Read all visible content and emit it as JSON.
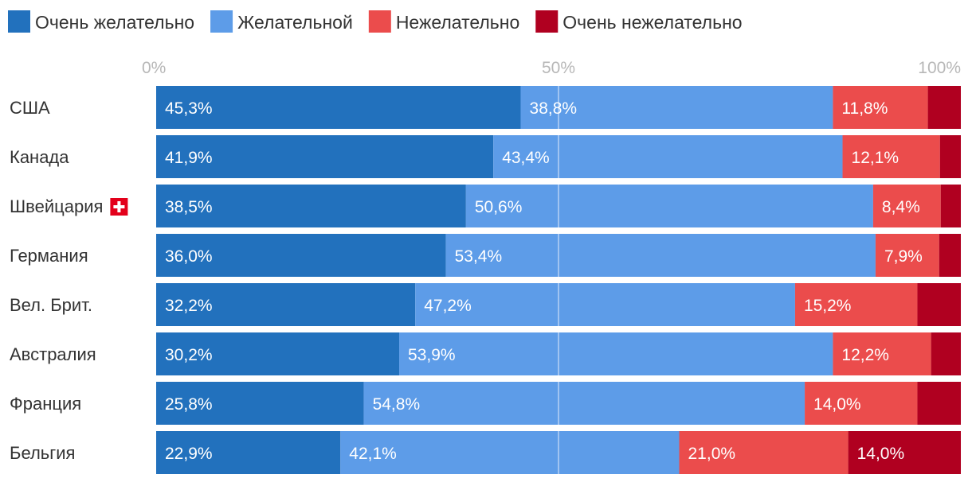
{
  "chart_data": {
    "type": "bar",
    "orientation": "horizontal",
    "stacked": true,
    "legend_position": "top-left",
    "grid": true,
    "xlim": [
      0,
      100
    ],
    "x_ticks": [
      "0%",
      "50%",
      "100%"
    ],
    "categories": [
      "США",
      "Канада",
      "Швейцария",
      "Германия",
      "Вел. Брит.",
      "Австралия",
      "Франция",
      "Бельгия"
    ],
    "category_flags": {
      "Швейцария": "swiss-flag"
    },
    "series": [
      {
        "name": "Очень желательно",
        "color": "#2271bd",
        "values": [
          45.3,
          41.9,
          38.5,
          36.0,
          32.2,
          30.2,
          25.8,
          22.9
        ],
        "labels": [
          "45,3%",
          "41,9%",
          "38,5%",
          "36,0%",
          "32,2%",
          "30,2%",
          "25,8%",
          "22,9%"
        ]
      },
      {
        "name": "Желательной",
        "color": "#5d9ce8",
        "values": [
          38.8,
          43.4,
          50.6,
          53.4,
          47.2,
          53.9,
          54.8,
          42.1
        ],
        "labels": [
          "38,8%",
          "43,4%",
          "50,6%",
          "53,4%",
          "47,2%",
          "53,9%",
          "54,8%",
          "42,1%"
        ]
      },
      {
        "name": "Нежелательно",
        "color": "#eb4c4c",
        "values": [
          11.8,
          12.1,
          8.4,
          7.9,
          15.2,
          12.2,
          14.0,
          21.0
        ],
        "labels": [
          "11,8%",
          "12,1%",
          "8,4%",
          "7,9%",
          "15,2%",
          "12,2%",
          "14,0%",
          "21,0%"
        ]
      },
      {
        "name": "Очень нежелательно",
        "color": "#b00020",
        "values": [
          4.1,
          2.6,
          2.5,
          2.7,
          5.4,
          3.7,
          5.4,
          14.0
        ],
        "labels": [
          "",
          "",
          "",
          "",
          "",
          "",
          "",
          "14,0%"
        ]
      }
    ]
  }
}
